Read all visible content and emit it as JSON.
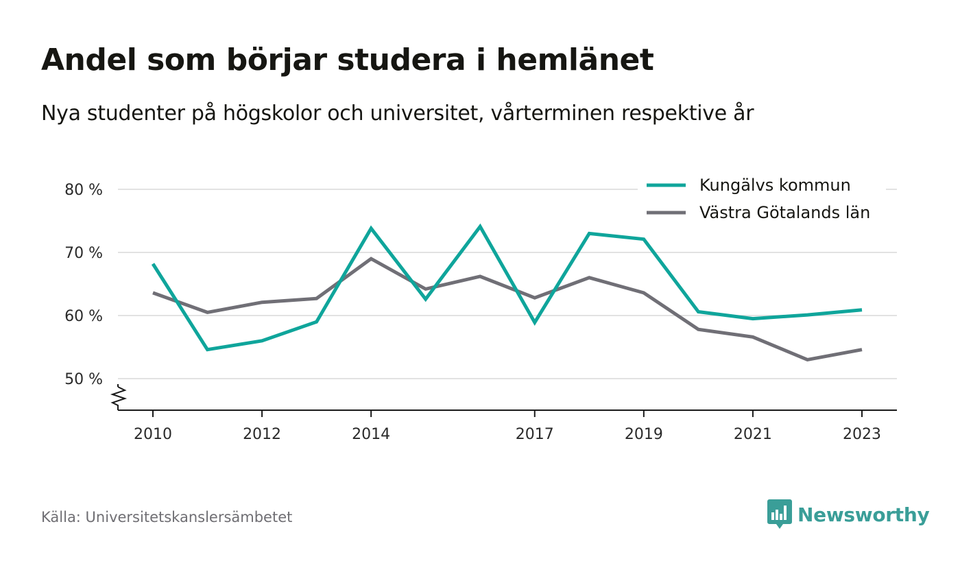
{
  "header": {
    "title": "Andel som börjar studera i hemlänet",
    "subtitle": "Nya studenter på högskolor och universitet, vårterminen respektive år"
  },
  "footer": {
    "source": "Källa: Universitetskanslersämbetet",
    "brand": "Newsworthy",
    "brand_color": "#3a9e98"
  },
  "chart_data": {
    "type": "line",
    "x": [
      2010,
      2011,
      2012,
      2013,
      2014,
      2015,
      2016,
      2017,
      2018,
      2019,
      2020,
      2021,
      2022,
      2023
    ],
    "x_tick_labels": [
      "2010",
      "2012",
      "2014",
      "2017",
      "2019",
      "2021",
      "2023"
    ],
    "x_ticks": [
      2010,
      2012,
      2014,
      2017,
      2019,
      2021,
      2023
    ],
    "y_ticks": [
      50,
      60,
      70,
      80
    ],
    "y_tick_labels": [
      "50 %",
      "60 %",
      "70 %",
      "80 %"
    ],
    "ylim": [
      45,
      82
    ],
    "axis_break": true,
    "grid": true,
    "legend_position": "top-right",
    "series": [
      {
        "name": "Kungälvs kommun",
        "color": "#0fa59b",
        "values": [
          68.2,
          54.6,
          56.0,
          59.0,
          73.8,
          62.6,
          74.1,
          58.9,
          73.0,
          72.1,
          60.6,
          59.5,
          60.1,
          60.9
        ]
      },
      {
        "name": "Västra Götalands län",
        "color": "#706f76",
        "values": [
          63.6,
          60.5,
          62.1,
          62.7,
          69.0,
          64.2,
          66.2,
          62.8,
          66.0,
          63.6,
          57.8,
          56.6,
          53.0,
          54.6
        ]
      }
    ]
  }
}
